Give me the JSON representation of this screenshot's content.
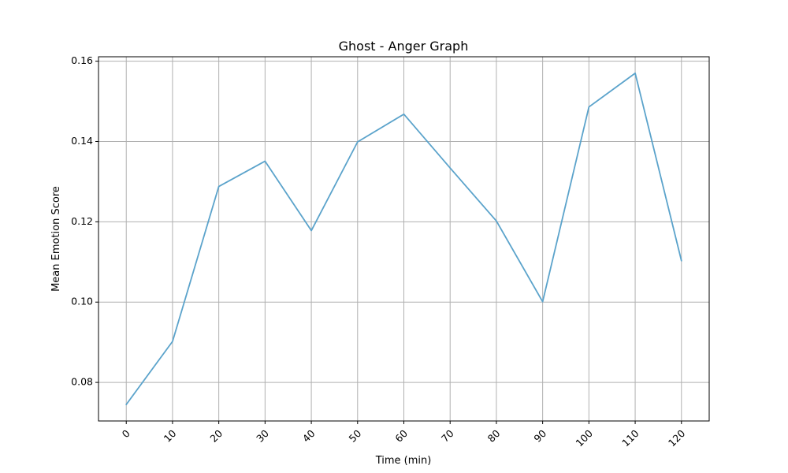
{
  "chart_data": {
    "type": "line",
    "title": "Ghost - Anger Graph",
    "xlabel": "Time (min)",
    "ylabel": "Mean Emotion Score",
    "x": [
      0,
      10,
      20,
      30,
      40,
      50,
      60,
      70,
      80,
      90,
      100,
      110,
      120
    ],
    "series": [
      {
        "values": [
          0.0745,
          0.0902,
          0.1288,
          0.1351,
          0.1178,
          0.1399,
          0.1468,
          0.1334,
          0.1202,
          0.1001,
          0.1486,
          0.157,
          0.1103
        ]
      }
    ],
    "xticks": [
      "0",
      "10",
      "20",
      "30",
      "40",
      "50",
      "60",
      "70",
      "80",
      "90",
      "100",
      "110",
      "120"
    ],
    "yticks": [
      "0.08",
      "0.10",
      "0.12",
      "0.14",
      "0.16"
    ],
    "ytick_values": [
      0.08,
      0.1,
      0.12,
      0.14,
      0.16
    ],
    "xlim": [
      -6,
      126
    ],
    "ylim": [
      0.0704,
      0.1611
    ],
    "grid": true,
    "line_color": "#5ba3cb",
    "grid_color": "#b0b0b0",
    "xtick_rotation_deg": 45
  }
}
